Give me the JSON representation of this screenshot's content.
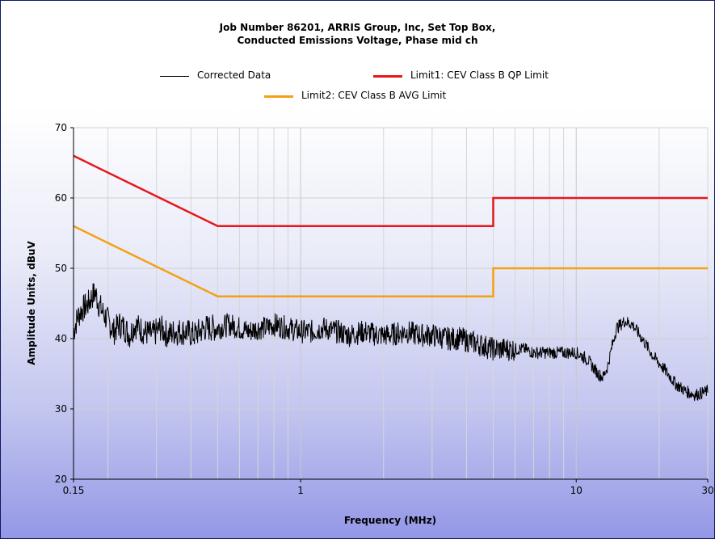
{
  "chart_data": {
    "type": "line",
    "title": "Job Number 86201, ARRIS  Group, Inc, Set Top Box,",
    "subtitle": "Conducted Emissions Voltage, Phase mid ch",
    "xlabel": "Frequency (MHz)",
    "ylabel": "Amplitude Units, dBuV",
    "x_scale": "log",
    "xlim": [
      0.15,
      30
    ],
    "ylim": [
      20,
      70
    ],
    "x_ticks": [
      "0.15",
      "1",
      "10",
      "30"
    ],
    "x_tick_values": [
      0.15,
      1,
      10,
      30
    ],
    "y_ticks": [
      "20",
      "30",
      "40",
      "50",
      "60",
      "70"
    ],
    "y_tick_values": [
      20,
      30,
      40,
      50,
      60,
      70
    ],
    "grid": true,
    "legend_position": "top",
    "series": [
      {
        "name": "Corrected Data",
        "color": "#000000",
        "x": [
          0.15,
          0.155,
          0.16,
          0.165,
          0.17,
          0.175,
          0.18,
          0.185,
          0.19,
          0.2,
          0.21,
          0.22,
          0.23,
          0.24,
          0.25,
          0.27,
          0.29,
          0.31,
          0.33,
          0.35,
          0.38,
          0.41,
          0.45,
          0.5,
          0.55,
          0.6,
          0.65,
          0.7,
          0.75,
          0.8,
          0.9,
          1.0,
          1.1,
          1.2,
          1.35,
          1.5,
          1.7,
          1.9,
          2.1,
          2.4,
          2.7,
          3.0,
          3.4,
          3.8,
          4.2,
          4.6,
          5.0,
          5.5,
          6.0,
          6.5,
          7.0,
          7.5,
          8.0,
          9.0,
          10.0,
          11.0,
          12.0,
          12.5,
          13.0,
          13.5,
          14.0,
          15.0,
          16.0,
          17.0,
          18.0,
          19.0,
          20.0,
          21.0,
          22.0,
          23.0,
          24.0,
          25.0,
          27.0,
          30.0
        ],
        "values": [
          41.0,
          43.0,
          44.0,
          44.5,
          45.0,
          46.0,
          46.5,
          45.0,
          44.0,
          42.5,
          41.0,
          42.0,
          41.5,
          40.5,
          42.0,
          41.0,
          40.5,
          41.5,
          40.5,
          41.0,
          41.0,
          40.5,
          41.5,
          41.5,
          42.0,
          41.5,
          41.0,
          41.5,
          41.5,
          42.0,
          41.5,
          41.0,
          41.0,
          41.5,
          41.0,
          40.5,
          41.0,
          40.5,
          40.5,
          41.0,
          40.5,
          40.5,
          40.0,
          40.0,
          39.5,
          39.0,
          38.5,
          38.5,
          38.5,
          38.5,
          38.0,
          38.0,
          38.0,
          38.0,
          38.0,
          37.0,
          35.0,
          34.5,
          36.0,
          39.0,
          41.5,
          42.5,
          42.0,
          40.5,
          39.0,
          37.5,
          36.5,
          35.5,
          34.5,
          33.5,
          33.0,
          32.5,
          32.0,
          32.5
        ]
      },
      {
        "name": "Limit1: CEV Class B QP Limit",
        "color": "#e8161b",
        "x": [
          0.15,
          0.5,
          5.0,
          5.0,
          30.0
        ],
        "values": [
          66,
          56,
          56,
          60,
          60
        ]
      },
      {
        "name": "Limit2: CEV Class B AVG Limit",
        "color": "#f5a010",
        "x": [
          0.15,
          0.5,
          5.0,
          5.0,
          30.0
        ],
        "values": [
          56,
          46,
          46,
          50,
          50
        ]
      }
    ]
  }
}
